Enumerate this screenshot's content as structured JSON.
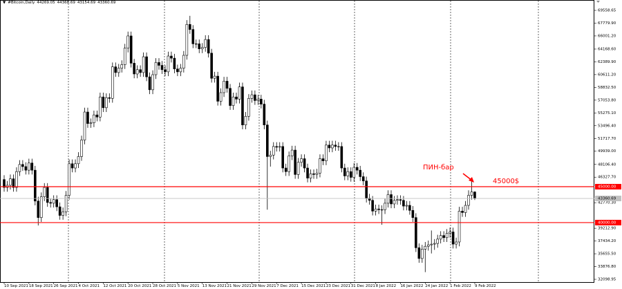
{
  "chart_data": {
    "type": "candlestick",
    "symbol": "#Bitcoin,Daily",
    "up_color": "#ffffff",
    "down_color": "#000000",
    "level_color": "#ff0000",
    "current_color": "#c0c0c0",
    "ylim": [
      31714,
      71003
    ],
    "yticks": [
      {
        "value": 32098.95,
        "label": "32098.95"
      },
      {
        "value": 33876.8,
        "label": "33876.80"
      },
      {
        "value": 35655.5,
        "label": "35655.50"
      },
      {
        "value": 37434.2,
        "label": "37434.20"
      },
      {
        "value": 39212.9,
        "label": "39212.90"
      },
      {
        "value": 42770.3,
        "label": "42770.30"
      },
      {
        "value": 46327.7,
        "label": "46327.70"
      },
      {
        "value": 48106.4,
        "label": "48106.40"
      },
      {
        "value": 49939,
        "label": "49939.00"
      },
      {
        "value": 51717.7,
        "label": "51717.70"
      },
      {
        "value": 53496.4,
        "label": "53496.40"
      },
      {
        "value": 55275.1,
        "label": "55275.10"
      },
      {
        "value": 57053.8,
        "label": "57053.80"
      },
      {
        "value": 58832.5,
        "label": "58832.50"
      },
      {
        "value": 60611.2,
        "label": "60611.20"
      },
      {
        "value": 62389.9,
        "label": "62389.90"
      },
      {
        "value": 64168.6,
        "label": "64168.60"
      },
      {
        "value": 66001.2,
        "label": "66001.20"
      },
      {
        "value": 67779.9,
        "label": "67779.90"
      },
      {
        "value": 69558.65,
        "label": "69558.65"
      }
    ],
    "levels": [
      {
        "value": 45000,
        "label": "45000.00"
      },
      {
        "value": 40000,
        "label": "40000.00"
      }
    ],
    "annotations": [
      "ПИН-бар",
      "45000$"
    ],
    "categories": [
      "10 Sep 2021",
      null,
      null,
      null,
      null,
      null,
      null,
      null,
      "18 Sep 2021",
      null,
      null,
      null,
      null,
      null,
      null,
      null,
      "26 Sep 2021",
      null,
      null,
      null,
      null,
      null,
      null,
      null,
      "4 Oct 2021",
      null,
      null,
      null,
      null,
      null,
      null,
      null,
      "12 Oct 2021",
      null,
      null,
      null,
      null,
      null,
      null,
      null,
      "20 Oct 2021",
      null,
      null,
      null,
      null,
      null,
      null,
      null,
      "28 Oct 2021",
      null,
      null,
      null,
      null,
      null,
      null,
      null,
      "5 Nov 2021",
      null,
      null,
      null,
      null,
      null,
      null,
      null,
      "13 Nov 2021",
      null,
      null,
      null,
      null,
      null,
      null,
      null,
      "21 Nov 2021",
      null,
      null,
      null,
      null,
      null,
      null,
      null,
      "29 Nov 2021",
      null,
      null,
      null,
      null,
      null,
      null,
      null,
      "7 Dec 2021",
      null,
      null,
      null,
      null,
      null,
      null,
      null,
      "15 Dec 2021",
      null,
      null,
      null,
      null,
      null,
      null,
      null,
      "23 Dec 2021",
      null,
      null,
      null,
      null,
      null,
      null,
      null,
      "31 Dec 2021",
      null,
      null,
      null,
      null,
      null,
      null,
      null,
      "8 Jan 2022",
      null,
      null,
      null,
      null,
      null,
      null,
      null,
      "16 Jan 2022",
      null,
      null,
      null,
      null,
      null,
      null,
      null,
      "24 Jan 2022",
      null,
      null,
      null,
      null,
      null,
      null,
      null,
      "1 Feb 2022",
      null,
      null,
      null,
      null,
      null,
      null,
      null,
      "9 Feb 2022"
    ],
    "open": [
      46000,
      44900,
      45200,
      46100,
      44900,
      47100,
      48100,
      47800,
      47300,
      48300,
      47300,
      43000,
      40700,
      43600,
      44900,
      42800,
      42700,
      43200,
      42200,
      41000,
      41500,
      43800,
      48200,
      47600,
      48200,
      49200,
      51500,
      55400,
      53800,
      53900,
      55000,
      54700,
      57500,
      56000,
      57400,
      57300,
      61700,
      60900,
      61500,
      62000,
      64300,
      66000,
      62200,
      60700,
      61300,
      60900,
      63100,
      60300,
      58500,
      60600,
      62300,
      61900,
      61300,
      61000,
      63200,
      62900,
      61400,
      61000,
      61500,
      63300,
      67600,
      66900,
      64900,
      64900,
      64200,
      64400,
      65500,
      63600,
      60100,
      60400,
      56900,
      58100,
      59700,
      58700,
      56300,
      57500,
      57200,
      58900,
      53600,
      54800,
      57300,
      57800,
      57000,
      57200,
      56500,
      53600,
      49200,
      49400,
      50600,
      50500,
      50600,
      47600,
      47100,
      49300,
      50100,
      46700,
      48400,
      48900,
      47600,
      46200,
      46800,
      46700,
      46900,
      48900,
      48600,
      50800,
      50400,
      50800,
      50600,
      50600,
      47600,
      46500,
      47100,
      46300,
      47700,
      47300,
      46400,
      45800,
      43400,
      43100,
      41600,
      41900,
      41800,
      41800,
      42700,
      43900,
      42600,
      43100,
      43200,
      43100,
      42300,
      42400,
      41700,
      40700,
      36500,
      35000,
      36300,
      36700,
      36900,
      37000,
      37100,
      37700,
      38200,
      37900,
      38500,
      38700,
      37000,
      37300,
      41600,
      41400,
      42400,
      43800,
      44269.05
    ],
    "high": [
      46600,
      45800,
      46700,
      46700,
      47700,
      48700,
      48700,
      48400,
      48900,
      48900,
      47900,
      43600,
      44200,
      45500,
      45500,
      43300,
      43800,
      43800,
      42800,
      42100,
      44400,
      48800,
      48800,
      48800,
      49800,
      52100,
      56000,
      56000,
      54500,
      55600,
      55600,
      58100,
      58100,
      58000,
      58000,
      62300,
      62300,
      62100,
      62600,
      64900,
      66600,
      66600,
      62800,
      61900,
      61900,
      63700,
      63700,
      60900,
      61200,
      62900,
      62900,
      62500,
      61900,
      63800,
      63800,
      63500,
      62000,
      62100,
      63900,
      68200,
      68800,
      67500,
      65500,
      65500,
      65000,
      66100,
      66100,
      64200,
      61000,
      61000,
      58700,
      60300,
      60300,
      59300,
      58100,
      58100,
      59500,
      59500,
      55400,
      57900,
      58400,
      58400,
      57800,
      57800,
      57100,
      54200,
      50000,
      51200,
      51200,
      51200,
      51200,
      48200,
      49900,
      50700,
      50700,
      49000,
      49500,
      49500,
      48200,
      47400,
      47400,
      47500,
      49500,
      49500,
      51400,
      51400,
      51400,
      51400,
      51200,
      51200,
      48200,
      47700,
      47700,
      48300,
      48300,
      47900,
      47000,
      46400,
      44000,
      43700,
      42500,
      42500,
      42400,
      43300,
      44500,
      44500,
      43700,
      43800,
      43800,
      43700,
      43000,
      43000,
      42300,
      41300,
      37100,
      36900,
      37300,
      37500,
      38900,
      37700,
      38300,
      38800,
      38800,
      39100,
      39300,
      39300,
      37900,
      42200,
      42200,
      43000,
      44500,
      45800,
      44368.69
    ],
    "low": [
      44300,
      44300,
      44600,
      44300,
      44300,
      46500,
      47200,
      46700,
      46700,
      46700,
      42400,
      39600,
      40100,
      43000,
      42200,
      42100,
      42100,
      41600,
      40400,
      40400,
      40900,
      43200,
      47000,
      47000,
      47600,
      48600,
      50900,
      53200,
      53200,
      53300,
      54100,
      54100,
      55400,
      55400,
      56700,
      56700,
      60300,
      60300,
      60900,
      61400,
      63700,
      61600,
      60100,
      60100,
      60300,
      60300,
      59700,
      57900,
      57900,
      60000,
      61300,
      60700,
      60400,
      60400,
      62300,
      60800,
      60400,
      60400,
      60900,
      62700,
      66300,
      64300,
      64300,
      63600,
      63600,
      63800,
      63000,
      59500,
      59500,
      56300,
      56300,
      57500,
      58100,
      55700,
      55700,
      56600,
      56600,
      53000,
      53000,
      54200,
      56700,
      56400,
      56400,
      55900,
      53000,
      41800,
      47800,
      48800,
      49900,
      49900,
      47000,
      46500,
      46500,
      48700,
      46100,
      46100,
      47800,
      47000,
      45600,
      45600,
      46100,
      46100,
      46300,
      48000,
      48000,
      49800,
      49800,
      50000,
      50000,
      47000,
      45900,
      45900,
      45700,
      45700,
      46700,
      45800,
      45200,
      42800,
      42500,
      41000,
      41000,
      41200,
      39700,
      41200,
      42100,
      42000,
      42000,
      42500,
      42500,
      41700,
      41700,
      41100,
      40100,
      35900,
      34400,
      34400,
      33100,
      36100,
      35700,
      36200,
      36500,
      37100,
      37300,
      37300,
      37900,
      36400,
      36400,
      36700,
      40800,
      40800,
      41800,
      43200,
      43154.69
    ],
    "close": [
      44900,
      45200,
      46100,
      44900,
      47100,
      48100,
      47800,
      47300,
      48300,
      47300,
      43000,
      40700,
      43600,
      44900,
      42800,
      42700,
      43200,
      42200,
      41000,
      41500,
      43800,
      48200,
      47600,
      48200,
      49200,
      51500,
      55400,
      53800,
      53900,
      55000,
      54700,
      57500,
      56000,
      57400,
      57300,
      61700,
      60900,
      61500,
      62000,
      64300,
      66000,
      62200,
      60700,
      61300,
      60900,
      63100,
      60300,
      58500,
      60600,
      62300,
      61900,
      61300,
      61000,
      63200,
      62900,
      61400,
      61000,
      61500,
      63300,
      67600,
      66900,
      64900,
      64900,
      64200,
      64400,
      65500,
      63600,
      60100,
      60400,
      56900,
      58100,
      59700,
      58700,
      56300,
      57500,
      57200,
      58900,
      53600,
      54800,
      57300,
      57800,
      57000,
      57200,
      56500,
      53600,
      49200,
      49400,
      50600,
      50500,
      50600,
      47600,
      47100,
      49300,
      50100,
      46700,
      48400,
      48900,
      47600,
      46200,
      46800,
      46700,
      46900,
      48900,
      48600,
      50800,
      50400,
      50800,
      50600,
      50600,
      47600,
      46500,
      47100,
      46300,
      47700,
      47300,
      46400,
      45800,
      43400,
      43100,
      41600,
      41900,
      41800,
      41800,
      42700,
      43900,
      42600,
      43100,
      43200,
      43100,
      42300,
      42400,
      41700,
      40700,
      36500,
      35000,
      36300,
      36700,
      36900,
      37000,
      37100,
      37700,
      38200,
      37900,
      38500,
      38700,
      37000,
      37300,
      41600,
      41400,
      42400,
      43800,
      44269.05,
      43360.69
    ]
  }
}
